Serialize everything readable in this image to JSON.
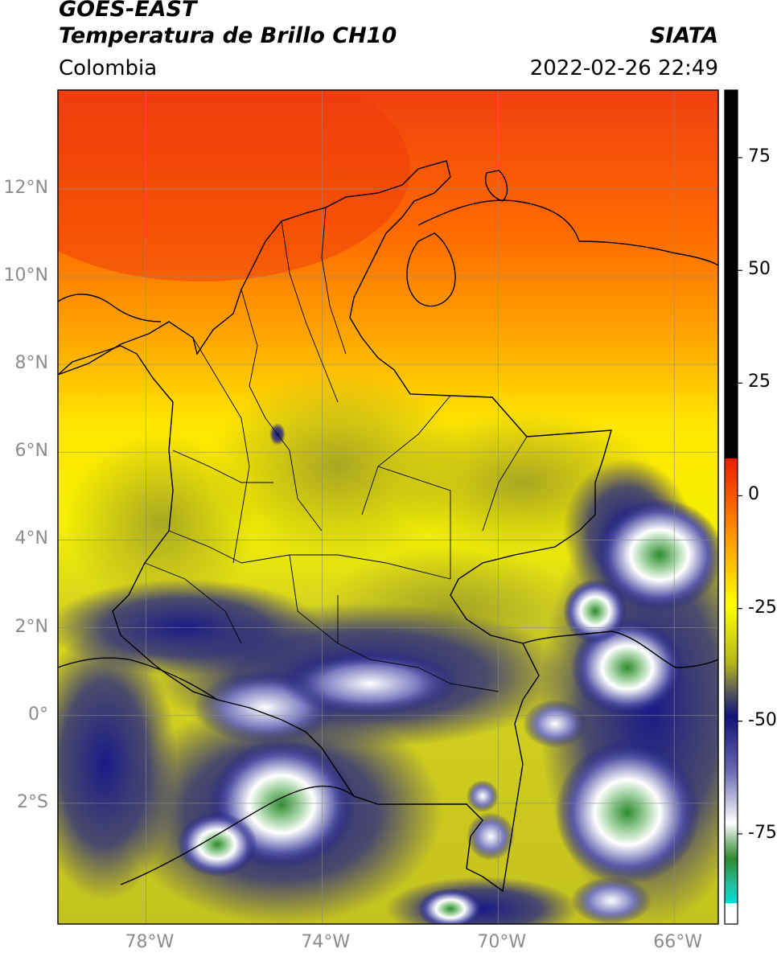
{
  "header": {
    "satellite": "GOES-EAST",
    "product": "Temperatura de Brillo CH10",
    "region": "Colombia",
    "agency": "SIATA",
    "datetime": "2022-02-26 22:49"
  },
  "map": {
    "lon_range": [
      -80,
      -65
    ],
    "lat_range": [
      -4.75,
      14.25
    ],
    "lat_ticks": [
      {
        "value": 12,
        "label": "12°N"
      },
      {
        "value": 10,
        "label": "10°N"
      },
      {
        "value": 8,
        "label": "8°N"
      },
      {
        "value": 6,
        "label": "6°N"
      },
      {
        "value": 4,
        "label": "4°N"
      },
      {
        "value": 2,
        "label": "2°N"
      },
      {
        "value": 0,
        "label": "0°"
      },
      {
        "value": -2,
        "label": "2°S"
      }
    ],
    "lon_ticks": [
      {
        "value": -78,
        "label": "78°W"
      },
      {
        "value": -74,
        "label": "74°W"
      },
      {
        "value": -70,
        "label": "70°W"
      },
      {
        "value": -66,
        "label": "66°W"
      }
    ]
  },
  "colorbar": {
    "range": [
      -95,
      90
    ],
    "ticks": [
      {
        "value": 75,
        "label": "75"
      },
      {
        "value": 50,
        "label": "50"
      },
      {
        "value": 25,
        "label": "25"
      },
      {
        "value": 0,
        "label": "0"
      },
      {
        "value": -25,
        "label": "-25"
      },
      {
        "value": -50,
        "label": "-50"
      },
      {
        "value": -75,
        "label": "-75"
      }
    ],
    "colors": {
      "warm_top": "#000000",
      "red": "#ee1c00",
      "orange": "#ff8c00",
      "yellow": "#ffff00",
      "olive": "#b6b61a",
      "navy": "#11117a",
      "white": "#ffffff",
      "green": "#2e8b2e",
      "cyan": "#00e0d8"
    }
  }
}
